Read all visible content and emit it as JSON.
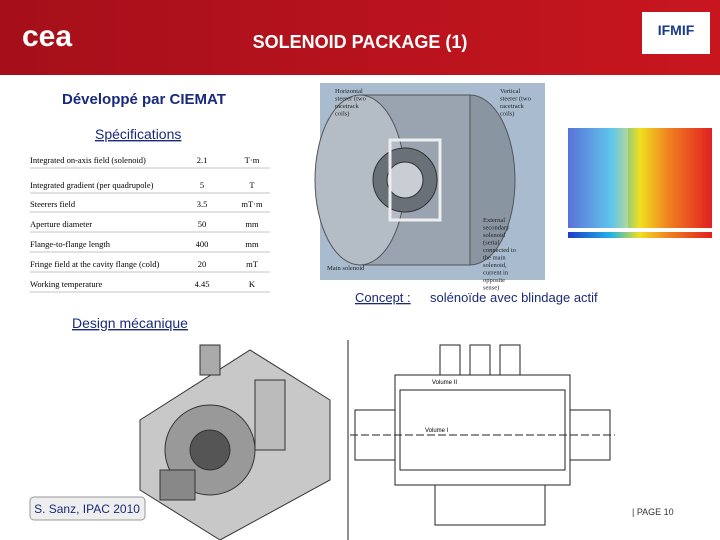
{
  "header": {
    "logo_left": "cea",
    "title": "SOLENOID PACKAGE (1)",
    "logo_right": "IFMIF"
  },
  "subtitle": "Développé par CIEMAT",
  "specs": {
    "heading": "Spécifications",
    "rows": [
      [
        "Integrated on-axis field (solenoid)",
        "2.1",
        "T·m"
      ],
      [
        "Integrated gradient (per quadrupole)",
        "5",
        "T"
      ],
      [
        "Steerers field",
        "3.5",
        "mT·m"
      ],
      [
        "Aperture diameter",
        "50",
        "mm"
      ],
      [
        "Flange-to-flange length",
        "400",
        "mm"
      ],
      [
        "Fringe field at the cavity flange (cold)",
        "20",
        "mT"
      ],
      [
        "Working temperature",
        "4.45",
        "K"
      ]
    ]
  },
  "concept_figure": {
    "labels": [
      "Horizontal steerer (two racetrack coils)",
      "Vertical steerer (two racetrack coils)",
      "External secondary solenoid (serial connected to the main solenoid, current in opposite sense)",
      "Main solenoid"
    ]
  },
  "caption": {
    "label": "Concept :",
    "text": "solénoïde avec blindage actif"
  },
  "design_heading": "Design mécanique",
  "drawing": {
    "labels": [
      "Volume II",
      "Volume I"
    ]
  },
  "footer": {
    "author": "S. Sanz, IPAC 2010",
    "page": "| PAGE 10"
  }
}
